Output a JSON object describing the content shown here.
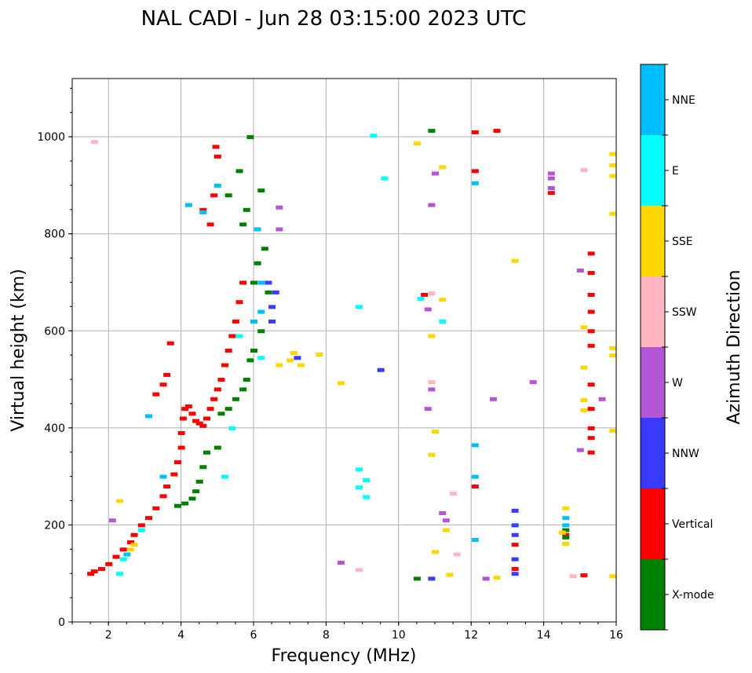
{
  "chart_data": {
    "type": "scatter",
    "title": "NAL CADI - Jun 28 03:15:00 2023 UTC",
    "xlabel": "Frequency (MHz)",
    "ylabel": "Virtual height (km)",
    "xlim": [
      1,
      16
    ],
    "ylim": [
      0,
      1120
    ],
    "xticks": [
      2,
      4,
      6,
      8,
      10,
      12,
      14,
      16
    ],
    "yticks": [
      0,
      200,
      400,
      600,
      800,
      1000
    ],
    "grid": true,
    "colorbar": {
      "label": "Azimuth Direction",
      "categories": [
        {
          "name": "X-mode",
          "color": "#008000"
        },
        {
          "name": "Vertical",
          "color": "#ff0000"
        },
        {
          "name": "NNW",
          "color": "#3a3aff"
        },
        {
          "name": "W",
          "color": "#b455d6"
        },
        {
          "name": "SSW",
          "color": "#ffb6c1"
        },
        {
          "name": "SSE",
          "color": "#ffd700"
        },
        {
          "name": "E",
          "color": "#00ffff"
        },
        {
          "name": "NNE",
          "color": "#00bfff"
        }
      ]
    },
    "series": [
      {
        "name": "Vertical",
        "points": [
          [
            1.5,
            100
          ],
          [
            1.6,
            105
          ],
          [
            1.8,
            110
          ],
          [
            2.0,
            120
          ],
          [
            2.2,
            135
          ],
          [
            2.4,
            150
          ],
          [
            2.6,
            165
          ],
          [
            2.7,
            180
          ],
          [
            2.9,
            200
          ],
          [
            3.1,
            215
          ],
          [
            3.3,
            235
          ],
          [
            3.5,
            260
          ],
          [
            3.6,
            280
          ],
          [
            3.8,
            305
          ],
          [
            3.9,
            330
          ],
          [
            4.0,
            360
          ],
          [
            4.0,
            390
          ],
          [
            4.05,
            420
          ],
          [
            4.1,
            440
          ],
          [
            4.2,
            445
          ],
          [
            4.3,
            430
          ],
          [
            4.4,
            415
          ],
          [
            4.5,
            410
          ],
          [
            4.6,
            405
          ],
          [
            4.7,
            420
          ],
          [
            4.8,
            440
          ],
          [
            4.9,
            460
          ],
          [
            5.0,
            480
          ],
          [
            5.1,
            500
          ],
          [
            5.2,
            530
          ],
          [
            5.3,
            560
          ],
          [
            5.4,
            590
          ],
          [
            5.5,
            620
          ],
          [
            5.6,
            660
          ],
          [
            5.7,
            700
          ],
          [
            4.8,
            820
          ],
          [
            4.6,
            850
          ],
          [
            4.9,
            880
          ],
          [
            5.0,
            960
          ],
          [
            4.95,
            980
          ],
          [
            3.6,
            510
          ],
          [
            3.5,
            490
          ],
          [
            3.3,
            470
          ],
          [
            3.7,
            575
          ],
          [
            12.1,
            280
          ],
          [
            12.1,
            930
          ],
          [
            12.1,
            1010
          ],
          [
            12.7,
            1013
          ],
          [
            14.2,
            885
          ],
          [
            15.3,
            350
          ],
          [
            15.3,
            380
          ],
          [
            15.3,
            400
          ],
          [
            15.3,
            440
          ],
          [
            15.3,
            490
          ],
          [
            15.3,
            570
          ],
          [
            15.3,
            600
          ],
          [
            15.3,
            640
          ],
          [
            15.3,
            675
          ],
          [
            15.3,
            720
          ],
          [
            15.3,
            760
          ],
          [
            15.1,
            97
          ],
          [
            13.2,
            110
          ],
          [
            13.2,
            160
          ],
          [
            14.6,
            180
          ],
          [
            10.7,
            675
          ]
        ]
      },
      {
        "name": "X-mode",
        "points": [
          [
            3.9,
            240
          ],
          [
            4.1,
            245
          ],
          [
            4.3,
            255
          ],
          [
            4.4,
            270
          ],
          [
            4.5,
            290
          ],
          [
            4.6,
            320
          ],
          [
            4.7,
            350
          ],
          [
            5.0,
            360
          ],
          [
            5.1,
            430
          ],
          [
            5.3,
            440
          ],
          [
            5.5,
            460
          ],
          [
            5.7,
            480
          ],
          [
            5.8,
            500
          ],
          [
            5.9,
            540
          ],
          [
            6.0,
            560
          ],
          [
            6.2,
            600
          ],
          [
            6.4,
            680
          ],
          [
            6.0,
            700
          ],
          [
            6.1,
            740
          ],
          [
            6.3,
            770
          ],
          [
            5.7,
            820
          ],
          [
            5.8,
            850
          ],
          [
            5.6,
            930
          ],
          [
            5.9,
            1000
          ],
          [
            6.2,
            890
          ],
          [
            5.3,
            880
          ],
          [
            10.9,
            1013
          ],
          [
            10.5,
            90
          ],
          [
            14.6,
            190
          ],
          [
            14.6,
            175
          ]
        ]
      },
      {
        "name": "NNW",
        "points": [
          [
            6.5,
            650
          ],
          [
            6.5,
            620
          ],
          [
            6.6,
            680
          ],
          [
            6.4,
            700
          ],
          [
            7.2,
            545
          ],
          [
            13.2,
            100
          ],
          [
            13.2,
            130
          ],
          [
            13.2,
            180
          ],
          [
            13.2,
            200
          ],
          [
            13.2,
            230
          ],
          [
            9.5,
            520
          ],
          [
            10.9,
            90
          ]
        ]
      },
      {
        "name": "W",
        "points": [
          [
            2.1,
            210
          ],
          [
            6.7,
            855
          ],
          [
            6.7,
            810
          ],
          [
            10.9,
            860
          ],
          [
            10.9,
            480
          ],
          [
            10.8,
            645
          ],
          [
            10.8,
            440
          ],
          [
            11.0,
            925
          ],
          [
            14.2,
            925
          ],
          [
            14.2,
            915
          ],
          [
            14.2,
            895
          ],
          [
            13.7,
            495
          ],
          [
            12.6,
            460
          ],
          [
            15.0,
            355
          ],
          [
            8.4,
            123
          ],
          [
            11.2,
            225
          ],
          [
            12.4,
            90
          ],
          [
            15.6,
            460
          ],
          [
            15.0,
            725
          ],
          [
            11.3,
            210
          ]
        ]
      },
      {
        "name": "SSW",
        "points": [
          [
            1.6,
            990
          ],
          [
            10.9,
            678
          ],
          [
            10.9,
            495
          ],
          [
            8.9,
            108
          ],
          [
            11.6,
            140
          ],
          [
            15.1,
            932
          ],
          [
            14.8,
            95
          ],
          [
            11.5,
            265
          ]
        ]
      },
      {
        "name": "SSE",
        "points": [
          [
            2.3,
            250
          ],
          [
            2.7,
            160
          ],
          [
            2.6,
            150
          ],
          [
            7.0,
            540
          ],
          [
            7.1,
            555
          ],
          [
            7.3,
            530
          ],
          [
            7.8,
            552
          ],
          [
            6.7,
            530
          ],
          [
            8.4,
            493
          ],
          [
            10.9,
            590
          ],
          [
            10.9,
            345
          ],
          [
            11.2,
            665
          ],
          [
            11.2,
            938
          ],
          [
            10.5,
            987
          ],
          [
            11.4,
            98
          ],
          [
            12.7,
            92
          ],
          [
            13.2,
            745
          ],
          [
            14.6,
            235
          ],
          [
            14.5,
            185
          ],
          [
            14.6,
            162
          ],
          [
            15.1,
            525
          ],
          [
            15.1,
            458
          ],
          [
            15.1,
            437
          ],
          [
            15.1,
            608
          ],
          [
            15.9,
            965
          ],
          [
            15.9,
            942
          ],
          [
            15.9,
            920
          ],
          [
            15.9,
            842
          ],
          [
            15.9,
            95
          ],
          [
            15.9,
            565
          ],
          [
            15.9,
            550
          ],
          [
            15.9,
            395
          ],
          [
            11.0,
            145
          ],
          [
            11.0,
            393
          ],
          [
            11.3,
            190
          ]
        ]
      },
      {
        "name": "E",
        "points": [
          [
            2.3,
            100
          ],
          [
            2.4,
            130
          ],
          [
            2.9,
            190
          ],
          [
            5.2,
            300
          ],
          [
            5.4,
            400
          ],
          [
            5.6,
            590
          ],
          [
            6.2,
            545
          ],
          [
            8.9,
            315
          ],
          [
            9.1,
            293
          ],
          [
            8.9,
            278
          ],
          [
            9.1,
            258
          ],
          [
            8.9,
            650
          ],
          [
            9.3,
            1003
          ],
          [
            9.6,
            915
          ],
          [
            10.6,
            667
          ],
          [
            11.2,
            620
          ]
        ]
      },
      {
        "name": "NNE",
        "points": [
          [
            3.1,
            425
          ],
          [
            4.2,
            860
          ],
          [
            4.6,
            845
          ],
          [
            5.0,
            900
          ],
          [
            6.1,
            810
          ],
          [
            6.2,
            700
          ],
          [
            6.2,
            640
          ],
          [
            6.0,
            620
          ],
          [
            3.5,
            300
          ],
          [
            2.5,
            140
          ],
          [
            12.1,
            365
          ],
          [
            12.1,
            300
          ],
          [
            12.1,
            170
          ],
          [
            12.1,
            905
          ],
          [
            14.6,
            215
          ],
          [
            14.6,
            200
          ]
        ]
      }
    ]
  }
}
